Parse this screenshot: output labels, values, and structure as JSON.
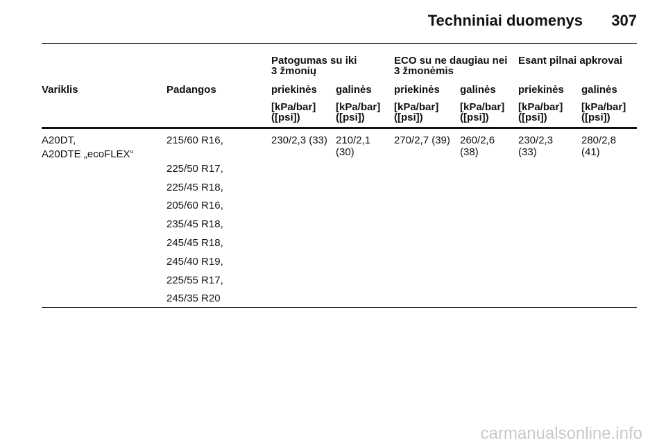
{
  "header": {
    "title": "Techniniai duomenys",
    "page": "307"
  },
  "table": {
    "group_headers": [
      [
        "Patogumas su iki",
        "3 žmonių"
      ],
      [
        "ECO su ne daugiau nei",
        "3 žmonėmis"
      ],
      [
        "Esant pilnai apkrovai"
      ]
    ],
    "columns": [
      "Variklis",
      "Padangos",
      "priekinės",
      "galinės",
      "priekinės",
      "galinės",
      "priekinės",
      "galinės"
    ],
    "units": [
      [
        "[kPa/bar]",
        "([psi])"
      ],
      [
        "[kPa/bar]",
        "([psi])"
      ],
      [
        "[kPa/bar]",
        "([psi])"
      ],
      [
        "[kPa/bar]",
        "([psi])"
      ],
      [
        "[kPa/bar]",
        "([psi])"
      ],
      [
        "[kPa/bar]",
        "([psi])"
      ]
    ],
    "rows": [
      {
        "engine": [
          "A20DT,",
          "A20DTE „ecoFLEX“"
        ],
        "tires": [
          "215/60 R16,",
          "225/50 R17,",
          "225/45 R18,",
          "205/60 R16,",
          "235/45 R18,",
          "245/45 R18,",
          "245/40 R19,",
          "225/55 R17,",
          "245/35 R20"
        ],
        "values": [
          [
            "230/2,3 (33)"
          ],
          [
            "210/2,1",
            "(30)"
          ],
          [
            "270/2,7 (39)"
          ],
          [
            "260/2,6",
            "(38)"
          ],
          [
            "230/2,3",
            "(33)"
          ],
          [
            "280/2,8",
            "(41)"
          ]
        ]
      }
    ]
  },
  "watermark": "carmanualsonline.info"
}
